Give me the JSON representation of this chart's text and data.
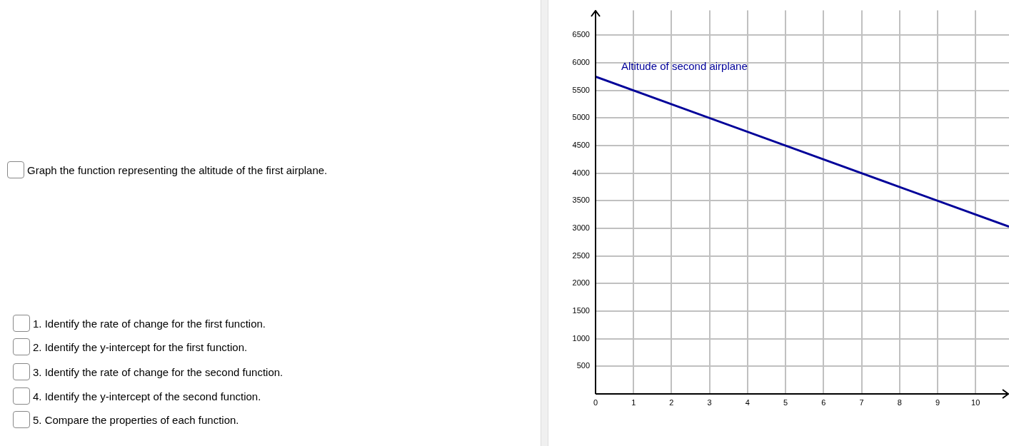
{
  "chart_data": {
    "type": "line",
    "x": [
      0,
      10.88
    ],
    "series": [
      {
        "name": "Altitude of second airplane",
        "color": "#000099",
        "values": [
          5750,
          3030
        ]
      }
    ],
    "xlim": [
      0,
      10.88
    ],
    "ylim": [
      0,
      6950
    ],
    "xticks": [
      0,
      1,
      2,
      3,
      4,
      5,
      6,
      7,
      8,
      9,
      10
    ],
    "yticks": [
      {
        "value": 0,
        "label": null
      },
      500,
      1000,
      1500,
      2000,
      2500,
      3000,
      3500,
      4000,
      4500,
      5000,
      5500,
      6000,
      6500
    ],
    "grid": true,
    "legend": false,
    "marker": "none",
    "line_style": "solid",
    "annotations": [
      "Graph the function representing the altitude of the first airplane.",
      "1. Identify the rate of change for the first function.",
      "2. Identify the y-intercept for the first function.",
      "3. Identify the rate of change for the second function.",
      "4. Identify the y-intercept of the second function.",
      "5. Compare the properties of each function."
    ]
  }
}
